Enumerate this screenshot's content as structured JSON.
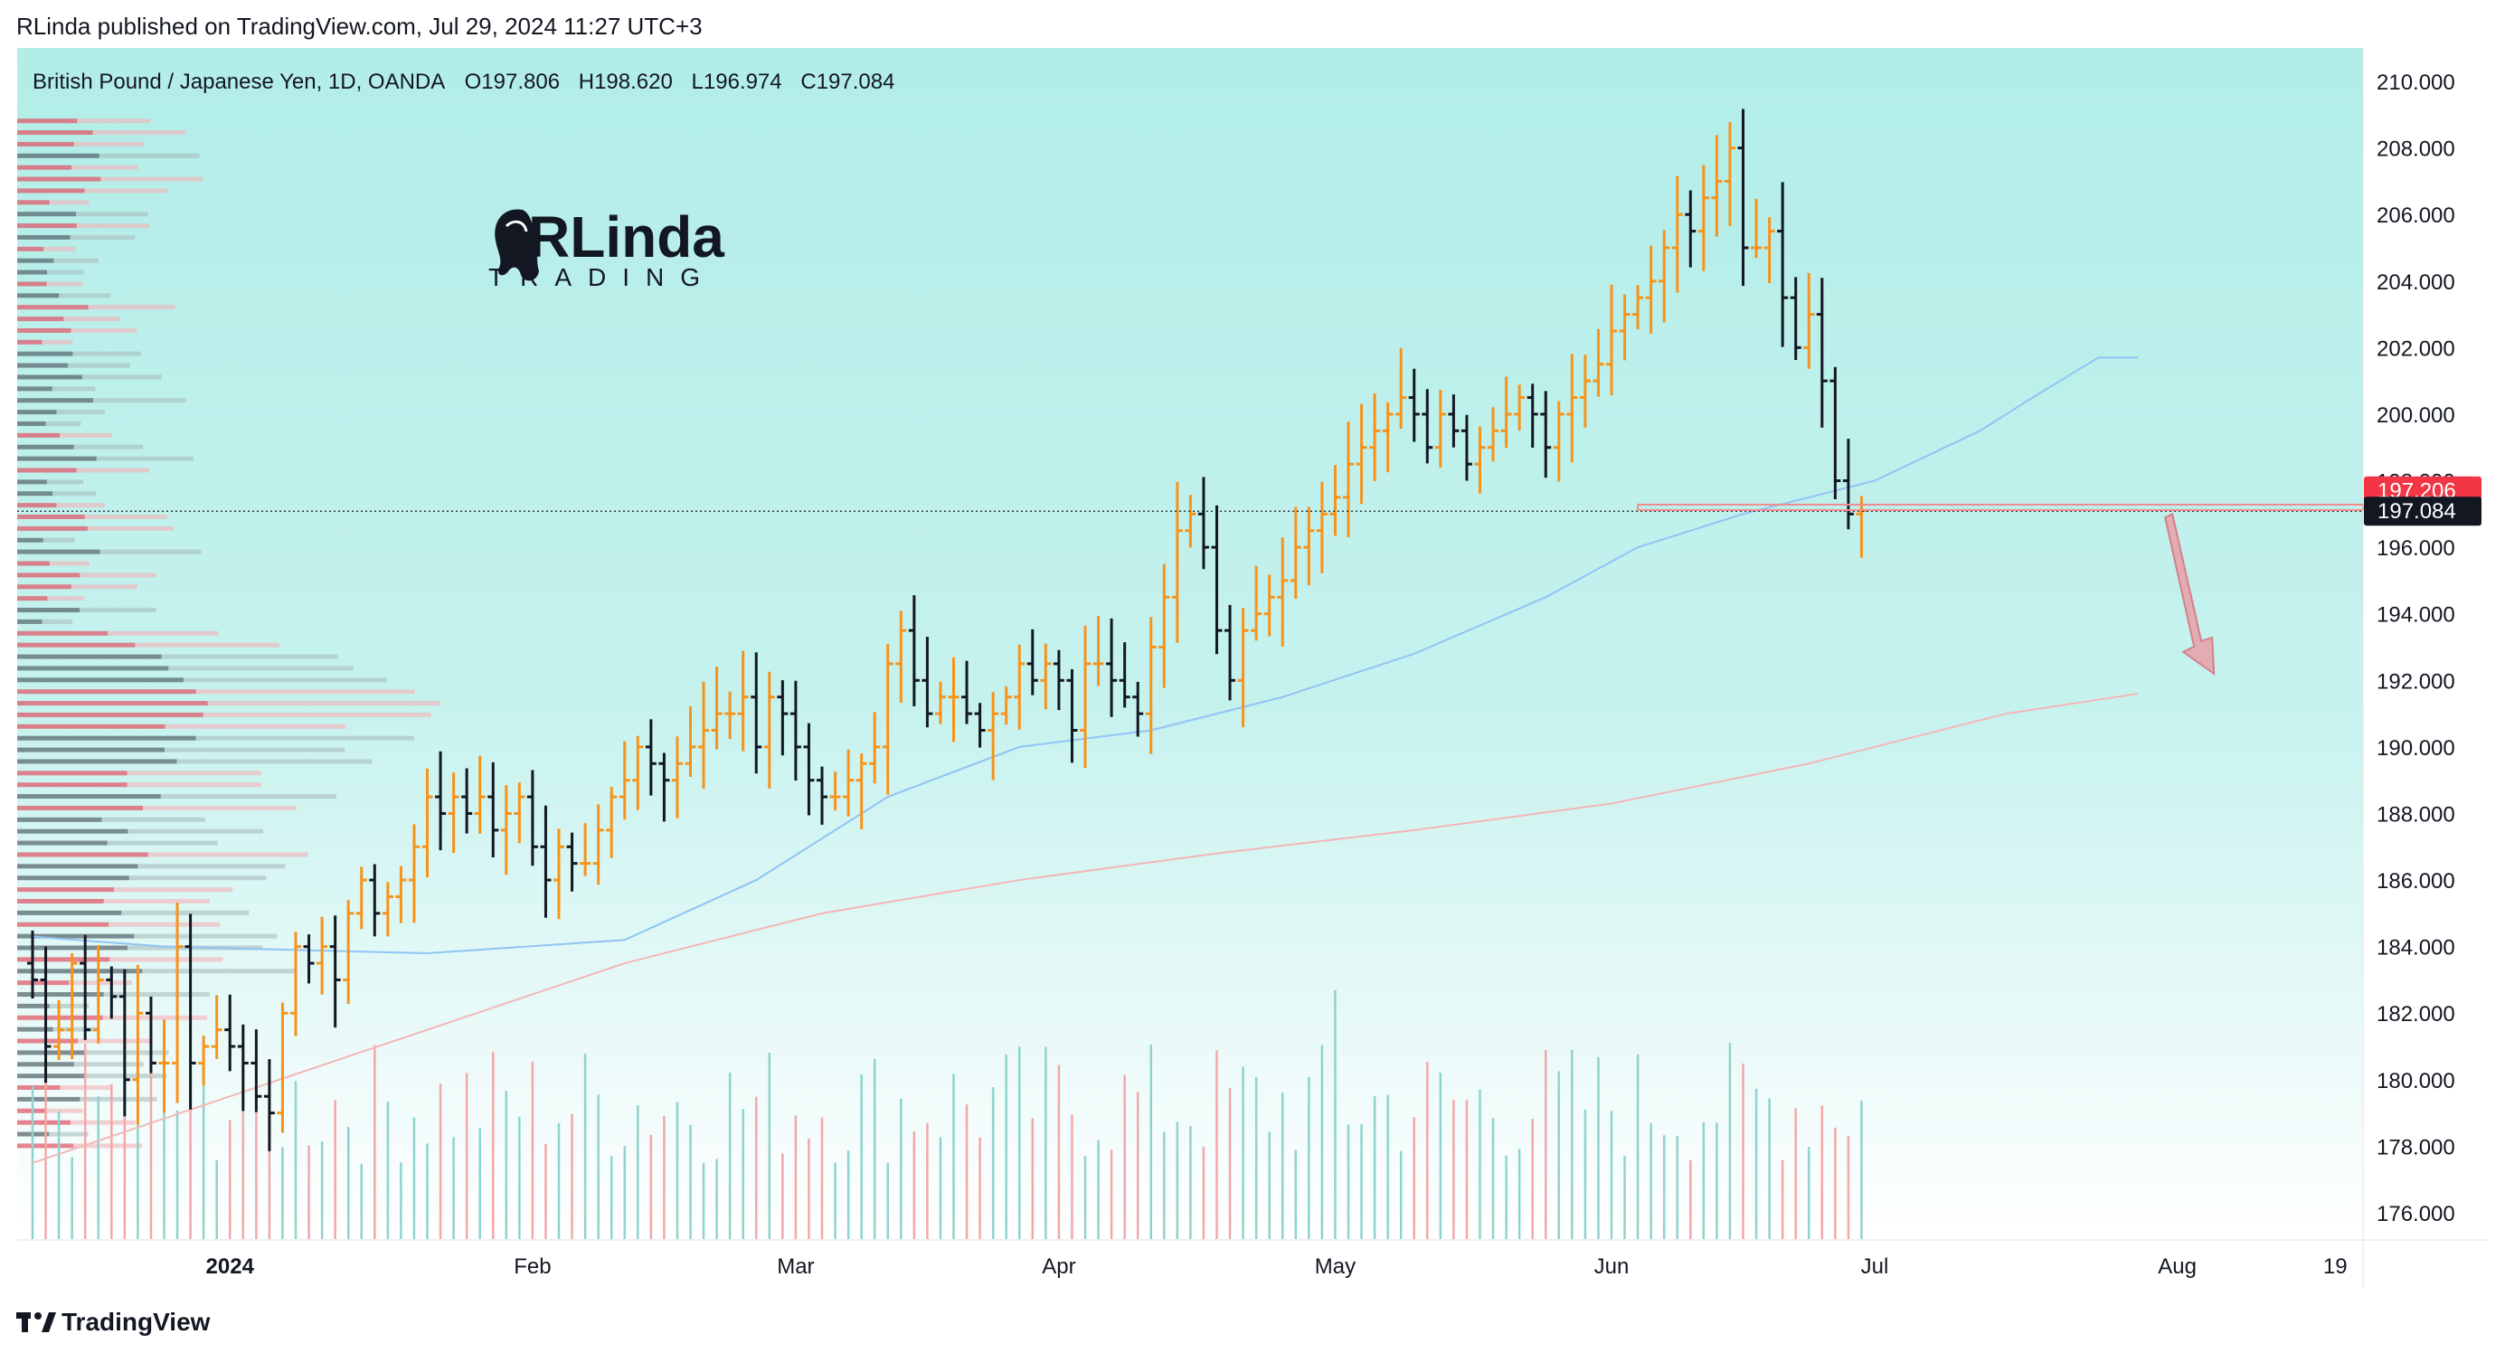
{
  "header": {
    "published": "RLinda published on TradingView.com, Jul 29, 2024 11:27 UTC+3"
  },
  "legend": {
    "symbol": "British Pound / Japanese Yen, 1D, OANDA",
    "o_label": "O",
    "o": "197.806",
    "h_label": "H",
    "h": "198.620",
    "l_label": "L",
    "l": "196.974",
    "c_label": "C",
    "c": "197.084"
  },
  "watermark": {
    "line1": "RLinda",
    "line2": "TRADING"
  },
  "footer": {
    "brand": "TradingView"
  },
  "colors": {
    "bull": "#f7931a",
    "bear": "#131722",
    "bg_top": "#b2ede8",
    "bg_bottom": "#ffffff",
    "ma_fast": "#90c4f5",
    "ma_slow": "#f4b6b6",
    "level": "#f28b8b",
    "price_tag_red": "#f23645",
    "price_tag_dark": "#131722",
    "vol_red": "#f4a7a7",
    "vol_teal": "#8fd3cc"
  },
  "chart_data": {
    "type": "ohlc",
    "symbol": "GBPJPY",
    "timeframe": "1D",
    "ylim": [
      175,
      211
    ],
    "y_ticks": [
      "176.000",
      "178.000",
      "180.000",
      "182.000",
      "184.000",
      "186.000",
      "188.000",
      "190.000",
      "192.000",
      "194.000",
      "196.000",
      "198.000",
      "200.000",
      "202.000",
      "204.000",
      "206.000",
      "208.000",
      "210.000"
    ],
    "x_ticks": [
      {
        "label": "2024",
        "bold": true,
        "bar": 15
      },
      {
        "label": "Feb",
        "bar": 38
      },
      {
        "label": "Mar",
        "bar": 58
      },
      {
        "label": "Apr",
        "bar": 78
      },
      {
        "label": "May",
        "bar": 99
      },
      {
        "label": "Jun",
        "bar": 120
      },
      {
        "label": "Jul",
        "bar": 140
      },
      {
        "label": "Aug",
        "bar": 163
      },
      {
        "label": "19",
        "bar": 175
      }
    ],
    "price_labels": [
      {
        "value": 197.206,
        "text": "197.206",
        "style": "red"
      },
      {
        "value": 197.084,
        "text": "197.084",
        "style": "dark"
      }
    ],
    "support_level": {
      "value": 197.2,
      "from_bar": 122,
      "to_bar": 182
    },
    "projection_arrow": {
      "from_value": 197.0,
      "to_value": 192.2,
      "bar": 164
    },
    "closes": [
      183.0,
      181.0,
      181.5,
      183.5,
      181.5,
      183.0,
      182.5,
      180.0,
      182.0,
      180.5,
      180.5,
      184.0,
      180.5,
      181.0,
      181.5,
      181.0,
      180.5,
      179.5,
      179.0,
      182.0,
      184.0,
      183.5,
      184.0,
      183.0,
      185.0,
      186.0,
      185.0,
      185.5,
      186.0,
      187.0,
      188.5,
      188.0,
      188.5,
      188.0,
      188.5,
      187.5,
      188.0,
      188.5,
      187.0,
      186.0,
      187.0,
      186.5,
      186.5,
      187.5,
      188.5,
      189.0,
      190.0,
      189.5,
      189.0,
      189.5,
      190.0,
      190.5,
      191.0,
      191.0,
      191.5,
      190.0,
      191.5,
      191.0,
      190.0,
      189.0,
      188.5,
      188.5,
      189.0,
      189.5,
      190.0,
      192.5,
      193.5,
      192.0,
      191.0,
      191.5,
      191.5,
      191.0,
      190.5,
      191.0,
      191.5,
      192.5,
      192.0,
      192.5,
      192.0,
      190.5,
      192.5,
      192.5,
      192.0,
      191.5,
      191.0,
      193.0,
      194.5,
      196.5,
      197.0,
      196.0,
      193.5,
      192.0,
      193.5,
      194.0,
      194.5,
      195.0,
      196.0,
      196.5,
      197.0,
      197.5,
      198.5,
      199.0,
      199.5,
      200.0,
      200.5,
      200.0,
      199.0,
      200.0,
      199.5,
      198.5,
      199.0,
      199.5,
      200.0,
      200.5,
      200.0,
      199.0,
      200.0,
      200.5,
      201.0,
      201.5,
      202.5,
      203.0,
      203.5,
      204.0,
      205.0,
      206.0,
      205.5,
      206.5,
      207.0,
      208.0,
      205.0,
      205.0,
      205.5,
      203.5,
      202.0,
      203.0,
      201.0,
      198.0,
      197.0,
      197.1
    ],
    "moving_averages": [
      {
        "name": "fast",
        "points": [
          [
            0,
            184.3
          ],
          [
            10,
            184.0
          ],
          [
            30,
            183.8
          ],
          [
            45,
            184.2
          ],
          [
            55,
            186.0
          ],
          [
            65,
            188.5
          ],
          [
            75,
            190.0
          ],
          [
            85,
            190.5
          ],
          [
            95,
            191.5
          ],
          [
            105,
            192.8
          ],
          [
            115,
            194.5
          ],
          [
            122,
            196.0
          ],
          [
            130,
            197.0
          ],
          [
            140,
            198.0
          ],
          [
            148,
            199.5
          ],
          [
            152,
            200.5
          ],
          [
            157,
            201.7
          ],
          [
            160,
            201.7
          ]
        ]
      },
      {
        "name": "slow",
        "points": [
          [
            0,
            177.5
          ],
          [
            15,
            179.5
          ],
          [
            30,
            181.5
          ],
          [
            45,
            183.5
          ],
          [
            60,
            185.0
          ],
          [
            75,
            186.0
          ],
          [
            90,
            186.8
          ],
          [
            105,
            187.5
          ],
          [
            120,
            188.3
          ],
          [
            135,
            189.5
          ],
          [
            150,
            191.0
          ],
          [
            160,
            191.6
          ]
        ]
      }
    ]
  }
}
